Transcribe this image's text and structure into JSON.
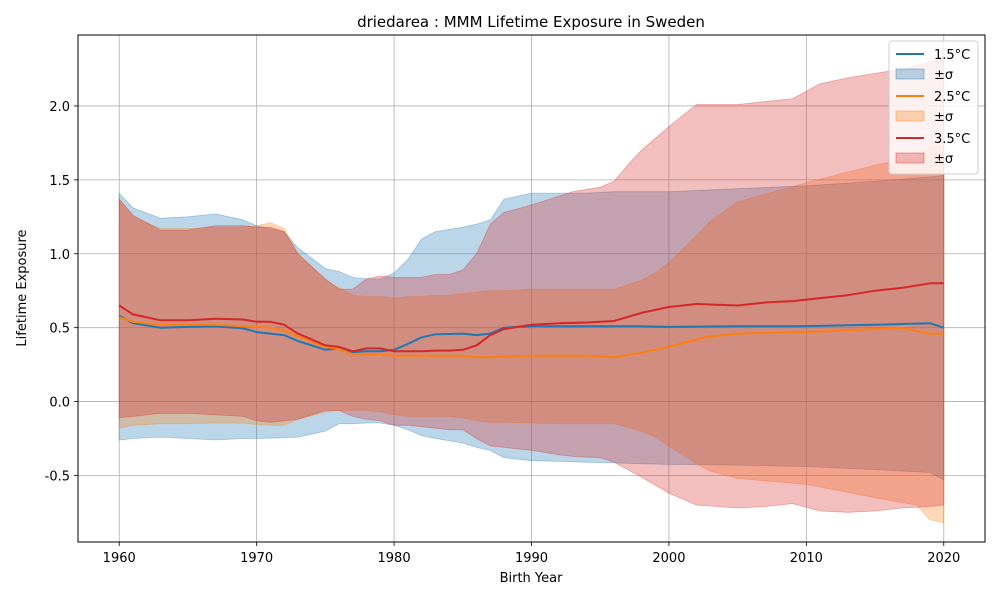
{
  "chart_data": {
    "type": "line",
    "title": "driedarea : MMM Lifetime Exposure in Sweden",
    "xlabel": "Birth Year",
    "ylabel": "Lifetime Exposure",
    "xlim": [
      1957,
      2023
    ],
    "ylim": [
      -0.95,
      2.48
    ],
    "x_ticks": [
      1960,
      1970,
      1980,
      1990,
      2000,
      2010,
      2020
    ],
    "y_ticks": [
      -0.5,
      0.0,
      0.5,
      1.0,
      1.5,
      2.0
    ],
    "grid": true,
    "legend_position": "top-right",
    "x_anchor": [
      1960,
      1961,
      1963,
      1965,
      1967,
      1969,
      1970,
      1971,
      1972,
      1973,
      1975,
      1976,
      1977,
      1978,
      1979,
      1980,
      1981,
      1982,
      1983,
      1984,
      1985,
      1986,
      1987,
      1988,
      1989,
      1990,
      1992,
      1994,
      1996,
      1998,
      1999,
      2000,
      2002,
      2003,
      2005,
      2007,
      2008,
      2009,
      2011,
      2013,
      2015,
      2017,
      2019,
      2020
    ],
    "series": [
      {
        "name": "1.5°C",
        "color": "#1f77b4",
        "band_label": "±σ",
        "x": [
          1960,
          1961,
          1963,
          1965,
          1967,
          1969,
          1970,
          1972,
          1973,
          1975,
          1976,
          1977,
          1978,
          1979,
          1980,
          1981,
          1982,
          1983,
          1985,
          1986,
          1987,
          1988,
          1990,
          1992,
          1994,
          1996,
          1998,
          2000,
          2005,
          2010,
          2015,
          2019,
          2020
        ],
        "mean": [
          0.58,
          0.53,
          0.5,
          0.505,
          0.51,
          0.495,
          0.47,
          0.45,
          0.41,
          0.35,
          0.36,
          0.335,
          0.34,
          0.34,
          0.35,
          0.39,
          0.435,
          0.455,
          0.46,
          0.45,
          0.46,
          0.5,
          0.51,
          0.51,
          0.51,
          0.51,
          0.51,
          0.505,
          0.51,
          0.51,
          0.52,
          0.53,
          0.5
        ],
        "upper": [
          1.41,
          1.31,
          1.24,
          1.25,
          1.27,
          1.23,
          1.19,
          1.15,
          1.04,
          0.9,
          0.88,
          0.84,
          0.83,
          0.83,
          0.87,
          0.96,
          1.1,
          1.15,
          1.18,
          1.2,
          1.23,
          1.37,
          1.41,
          1.41,
          1.41,
          1.42,
          1.42,
          1.42,
          1.44,
          1.46,
          1.49,
          1.52,
          1.53
        ],
        "lower": [
          -0.26,
          -0.25,
          -0.24,
          -0.25,
          -0.26,
          -0.25,
          -0.25,
          -0.245,
          -0.24,
          -0.2,
          -0.15,
          -0.15,
          -0.145,
          -0.145,
          -0.16,
          -0.19,
          -0.23,
          -0.25,
          -0.28,
          -0.31,
          -0.33,
          -0.38,
          -0.4,
          -0.405,
          -0.41,
          -0.415,
          -0.42,
          -0.425,
          -0.43,
          -0.44,
          -0.46,
          -0.48,
          -0.53
        ]
      },
      {
        "name": "2.5°C",
        "color": "#ff7f0e",
        "band_label": "±σ",
        "x": [
          1960,
          1961,
          1963,
          1965,
          1967,
          1969,
          1970,
          1971,
          1972,
          1973,
          1975,
          1976,
          1977,
          1978,
          1979,
          1980,
          1981,
          1982,
          1983,
          1984,
          1985,
          1986,
          1987,
          1988,
          1990,
          1992,
          1994,
          1996,
          1998,
          1999,
          2000,
          2002,
          2003,
          2005,
          2010,
          2015,
          2018,
          2019,
          2020
        ],
        "mean": [
          0.57,
          0.54,
          0.52,
          0.52,
          0.52,
          0.51,
          0.505,
          0.5,
          0.48,
          0.44,
          0.37,
          0.355,
          0.32,
          0.32,
          0.32,
          0.31,
          0.31,
          0.31,
          0.31,
          0.31,
          0.31,
          0.3,
          0.3,
          0.305,
          0.31,
          0.31,
          0.31,
          0.3,
          0.33,
          0.35,
          0.37,
          0.42,
          0.44,
          0.46,
          0.47,
          0.49,
          0.5,
          0.46,
          0.46
        ],
        "upper": [
          1.37,
          1.25,
          1.17,
          1.17,
          1.18,
          1.18,
          1.19,
          1.21,
          1.17,
          1.0,
          0.82,
          0.77,
          0.72,
          0.71,
          0.71,
          0.7,
          0.71,
          0.71,
          0.72,
          0.72,
          0.73,
          0.74,
          0.75,
          0.75,
          0.76,
          0.76,
          0.76,
          0.76,
          0.82,
          0.87,
          0.94,
          1.12,
          1.22,
          1.35,
          1.48,
          1.6,
          1.65,
          1.72,
          1.73
        ],
        "lower": [
          -0.18,
          -0.16,
          -0.15,
          -0.15,
          -0.145,
          -0.145,
          -0.155,
          -0.16,
          -0.16,
          -0.12,
          -0.07,
          -0.06,
          -0.06,
          -0.06,
          -0.07,
          -0.09,
          -0.1,
          -0.1,
          -0.1,
          -0.1,
          -0.11,
          -0.13,
          -0.14,
          -0.14,
          -0.145,
          -0.15,
          -0.15,
          -0.15,
          -0.2,
          -0.24,
          -0.3,
          -0.42,
          -0.47,
          -0.52,
          -0.56,
          -0.65,
          -0.7,
          -0.8,
          -0.82
        ]
      },
      {
        "name": "3.5°C",
        "color": "#d62728",
        "band_label": "±σ",
        "x": [
          1960,
          1961,
          1963,
          1965,
          1967,
          1969,
          1970,
          1971,
          1972,
          1973,
          1975,
          1976,
          1977,
          1978,
          1979,
          1980,
          1981,
          1982,
          1983,
          1984,
          1985,
          1986,
          1987,
          1988,
          1990,
          1992,
          1993,
          1995,
          1996,
          1997,
          1998,
          2000,
          2002,
          2005,
          2007,
          2009,
          2011,
          2013,
          2015,
          2017,
          2019,
          2020
        ],
        "mean": [
          0.65,
          0.59,
          0.55,
          0.55,
          0.56,
          0.555,
          0.54,
          0.54,
          0.52,
          0.46,
          0.38,
          0.37,
          0.34,
          0.36,
          0.36,
          0.34,
          0.34,
          0.34,
          0.345,
          0.345,
          0.35,
          0.38,
          0.45,
          0.49,
          0.52,
          0.53,
          0.535,
          0.535,
          0.545,
          0.57,
          0.6,
          0.64,
          0.66,
          0.65,
          0.67,
          0.68,
          0.7,
          0.72,
          0.75,
          0.77,
          0.8,
          0.8
        ],
        "upper": [
          1.37,
          1.26,
          1.16,
          1.16,
          1.19,
          1.19,
          1.18,
          1.18,
          1.15,
          1.0,
          0.83,
          0.76,
          0.76,
          0.83,
          0.85,
          0.84,
          0.84,
          0.84,
          0.86,
          0.86,
          0.89,
          1.0,
          1.2,
          1.28,
          1.33,
          1.39,
          1.42,
          1.45,
          1.49,
          1.6,
          1.7,
          1.86,
          2.01,
          2.01,
          2.03,
          2.05,
          2.15,
          2.19,
          2.22,
          2.25,
          2.3,
          2.34
        ],
        "lower": [
          -0.11,
          -0.1,
          -0.08,
          -0.08,
          -0.09,
          -0.1,
          -0.13,
          -0.14,
          -0.13,
          -0.12,
          -0.06,
          -0.06,
          -0.1,
          -0.12,
          -0.13,
          -0.16,
          -0.16,
          -0.17,
          -0.18,
          -0.19,
          -0.19,
          -0.25,
          -0.3,
          -0.31,
          -0.33,
          -0.36,
          -0.37,
          -0.38,
          -0.41,
          -0.46,
          -0.51,
          -0.62,
          -0.7,
          -0.72,
          -0.71,
          -0.69,
          -0.74,
          -0.75,
          -0.74,
          -0.72,
          -0.71,
          -0.7
        ]
      }
    ]
  }
}
